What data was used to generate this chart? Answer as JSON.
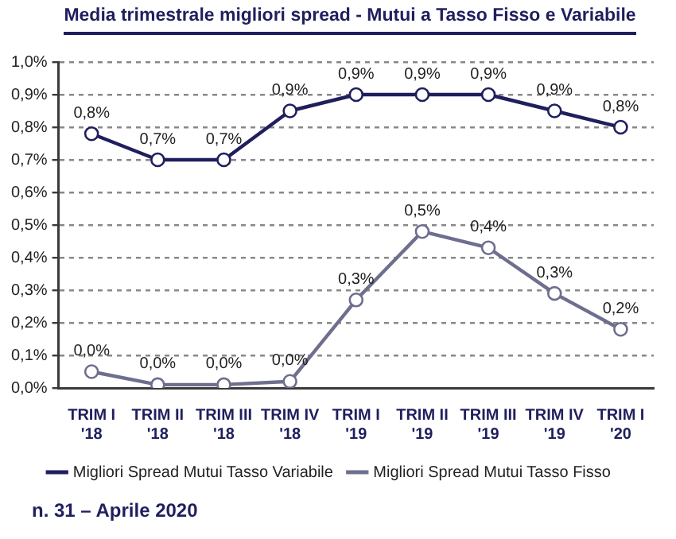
{
  "chart_data": {
    "type": "line",
    "title": "Media trimestrale migliori  spread - Mutui a Tasso Fisso e Variabile",
    "categories": [
      "TRIM I '18",
      "TRIM II '18",
      "TRIM III '18",
      "TRIM IV '18",
      "TRIM I '19",
      "TRIM II '19",
      "TRIM III '19",
      "TRIM IV '19",
      "TRIM I '20"
    ],
    "series": [
      {
        "name": "Migliori Spread Mutui Tasso Variabile",
        "color": "#1f1f5e",
        "values": [
          0.78,
          0.7,
          0.7,
          0.85,
          0.9,
          0.9,
          0.9,
          0.85,
          0.8
        ],
        "value_labels": [
          "0,8%",
          "0,7%",
          "0,7%",
          "0,9%",
          "0,9%",
          "0,9%",
          "0,9%",
          "0,9%",
          "0,8%"
        ]
      },
      {
        "name": "Migliori Spread Mutui Tasso Fisso",
        "color": "#6e6e8e",
        "values": [
          0.05,
          0.01,
          0.01,
          0.02,
          0.27,
          0.48,
          0.43,
          0.29,
          0.18
        ],
        "value_labels": [
          "0,0%",
          "0,0%",
          "0,0%",
          "0,0%",
          "0,3%",
          "0,5%",
          "0,4%",
          "0,3%",
          "0,2%"
        ]
      }
    ],
    "ylim": [
      0,
      1
    ],
    "yticks": [
      {
        "value": 0,
        "label": "0,0%"
      },
      {
        "value": 0.1,
        "label": "0,1%"
      },
      {
        "value": 0.2,
        "label": "0,2%"
      },
      {
        "value": 0.3,
        "label": "0,3%"
      },
      {
        "value": 0.4,
        "label": "0,4%"
      },
      {
        "value": 0.5,
        "label": "0,5%"
      },
      {
        "value": 0.6,
        "label": "0,6%"
      },
      {
        "value": 0.7,
        "label": "0,7%"
      },
      {
        "value": 0.8,
        "label": "0,8%"
      },
      {
        "value": 0.9,
        "label": "0,9%"
      },
      {
        "value": 1,
        "label": "1,0%"
      }
    ],
    "grid": "y",
    "legend": "bottom",
    "marker": "circle",
    "line_style": "solid",
    "annotations": [
      "n. 31 – Aprile 2020"
    ]
  }
}
